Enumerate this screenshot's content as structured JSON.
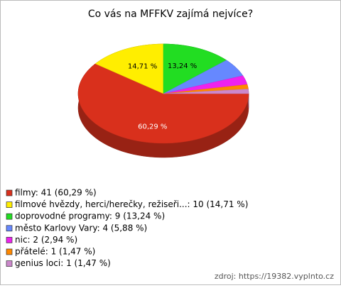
{
  "chart_data": {
    "type": "pie3d",
    "title": "Co vás na MFFKV zajímá nejvíce?",
    "categories": [
      "filmy: 41 (60,29 %)",
      "filmové hvězdy, herci/herečky, režiseři...: 10 (14,71 %)",
      "doprovodné programy: 9 (13,24 %)",
      "město Karlovy Vary: 4 (5,88 %)",
      "nic: 2 (2,94 %)",
      "přátelé: 1 (1,47 %)",
      "genius loci: 1 (1,47 %)"
    ],
    "values": [
      60.29,
      14.71,
      13.24,
      5.88,
      2.94,
      1.47,
      1.47
    ],
    "value_labels": [
      "60,29 %",
      "14,71 %",
      "13,24 %",
      null,
      null,
      null,
      null
    ],
    "colors": [
      "#d9301c",
      "#ffee00",
      "#22dd22",
      "#6688ff",
      "#ee22ee",
      "#ff8800",
      "#cc88cc"
    ],
    "legend": "bottom-left",
    "source": "zdroj: https://19382.vyplnto.cz"
  }
}
